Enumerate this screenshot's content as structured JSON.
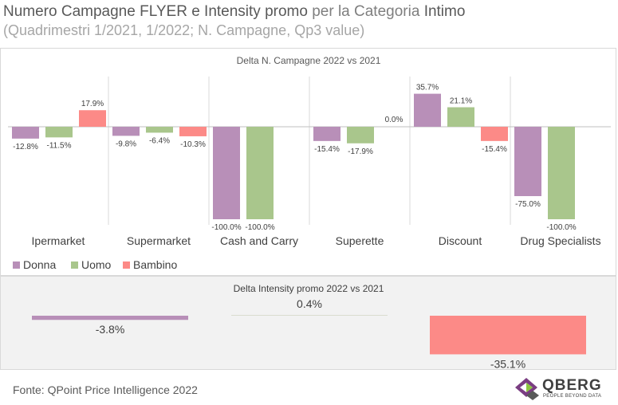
{
  "header": {
    "title_bold1": "Numero Campagne FLYER e Intensity promo",
    "title_mid": " per la Categoria ",
    "title_bold2": "Intimo",
    "subtitle": "(Quadrimestri 1/2021, 1/2022; N. Campagne, Qp3 value)"
  },
  "chart_data": [
    {
      "type": "bar",
      "title": "Delta N. Campagne 2022 vs 2021",
      "categories": [
        "Ipermarket",
        "Supermarket",
        "Cash and Carry",
        "Superette",
        "Discount",
        "Drug Specialists"
      ],
      "series": [
        {
          "name": "Donna",
          "color": "#b88fb8",
          "values": [
            -12.8,
            -9.8,
            -100.0,
            -15.4,
            35.7,
            -75.0
          ],
          "labels": [
            "-12.8%",
            "-9.8%",
            "-100.0%",
            "-15.4%",
            "35.7%",
            "-75.0%"
          ]
        },
        {
          "name": "Uomo",
          "color": "#a9c68c",
          "values": [
            -11.5,
            -6.4,
            -100.0,
            -17.9,
            21.1,
            -100.0
          ],
          "labels": [
            "-11.5%",
            "-6.4%",
            "-100.0%",
            "-17.9%",
            "21.1%",
            "-100.0%"
          ]
        },
        {
          "name": "Bambino",
          "color": "#fc8a87",
          "values": [
            17.9,
            -10.3,
            null,
            0.0,
            -15.4,
            null
          ],
          "labels": [
            "17.9%",
            "-10.3%",
            "",
            "0.0%",
            "-15.4%",
            ""
          ]
        }
      ],
      "legend": "bottom-left"
    },
    {
      "type": "bar",
      "title": "Delta Intensity promo 2022 vs 2021",
      "series": [
        {
          "name": "Donna",
          "color": "#b88fb8",
          "value": -3.8,
          "label": "-3.8%"
        },
        {
          "name": "Uomo",
          "color": "#a9c68c",
          "value": 0.4,
          "label": "0.4%"
        },
        {
          "name": "Bambino",
          "color": "#fc8a87",
          "value": -35.1,
          "label": "-35.1%"
        }
      ]
    }
  ],
  "footer": {
    "source": "Fonte: QPoint Price Intelligence 2022",
    "logo_name": "QBERG",
    "logo_tagline": "PEOPLE BEYOND DATA"
  }
}
